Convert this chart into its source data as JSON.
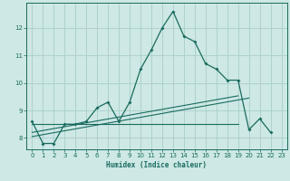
{
  "xlabel": "Humidex (Indice chaleur)",
  "background_color": "#cde8e5",
  "grid_color": "#a8ceca",
  "line_color": "#1a6b5e",
  "x_values": [
    0,
    1,
    2,
    3,
    4,
    5,
    6,
    7,
    8,
    9,
    10,
    11,
    12,
    13,
    14,
    15,
    16,
    17,
    18,
    19,
    20,
    21,
    22,
    23
  ],
  "series1": [
    8.6,
    7.8,
    7.8,
    8.5,
    8.5,
    8.6,
    9.1,
    9.3,
    8.6,
    9.3,
    10.5,
    11.2,
    12.0,
    12.6,
    11.7,
    11.5,
    10.7,
    10.5,
    10.1,
    10.1,
    8.3,
    8.7,
    8.2,
    null
  ],
  "series2_linear": [
    8.05,
    8.12,
    8.19,
    8.26,
    8.33,
    8.4,
    8.47,
    8.54,
    8.61,
    8.68,
    8.75,
    8.82,
    8.89,
    8.96,
    9.03,
    9.1,
    9.17,
    9.24,
    9.31,
    9.38,
    9.45,
    null,
    null,
    null
  ],
  "series3_flat": [
    8.5,
    8.5,
    8.5,
    8.5,
    8.5,
    8.5,
    8.5,
    8.5,
    8.5,
    8.5,
    8.5,
    8.5,
    8.5,
    8.5,
    8.5,
    8.5,
    8.5,
    8.5,
    8.5,
    8.5,
    null,
    null,
    null,
    null
  ],
  "series4_linear2": [
    8.2,
    8.27,
    8.34,
    8.41,
    8.48,
    8.55,
    8.62,
    8.69,
    8.76,
    8.83,
    8.9,
    8.97,
    9.04,
    9.11,
    9.18,
    9.25,
    9.32,
    9.39,
    9.46,
    9.53,
    null,
    null,
    null,
    null
  ],
  "ylim": [
    7.6,
    12.9
  ],
  "yticks": [
    8,
    9,
    10,
    11,
    12
  ],
  "xticks": [
    0,
    1,
    2,
    3,
    4,
    5,
    6,
    7,
    8,
    9,
    10,
    11,
    12,
    13,
    14,
    15,
    16,
    17,
    18,
    19,
    20,
    21,
    22,
    23
  ]
}
